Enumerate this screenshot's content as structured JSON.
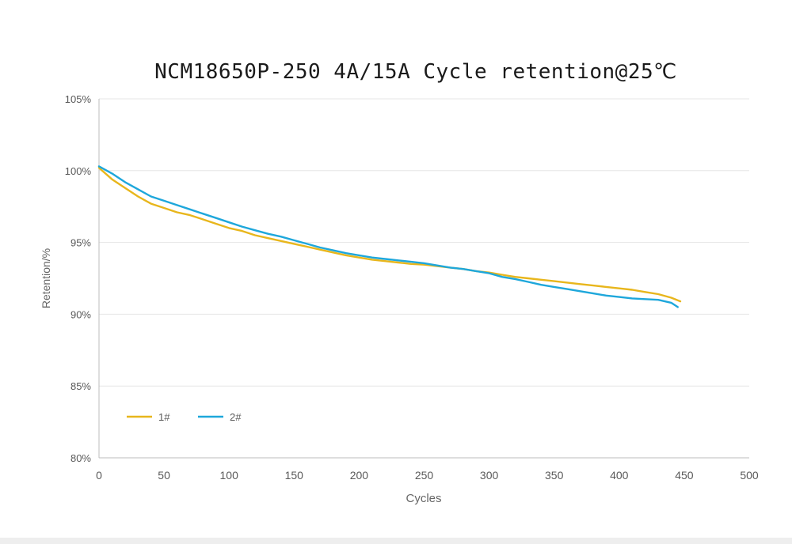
{
  "chart_data": {
    "type": "line",
    "title": "NCM18650P-250  4A/15A Cycle retention@25℃",
    "xlabel": "Cycles",
    "ylabel": "Retention/%",
    "xlim": [
      0,
      500
    ],
    "ylim": [
      80,
      105
    ],
    "x_ticks": [
      "0",
      "50",
      "100",
      "150",
      "200",
      "250",
      "300",
      "350",
      "400",
      "450",
      "500"
    ],
    "y_ticks": [
      "80%",
      "85%",
      "90%",
      "95%",
      "100%",
      "105%"
    ],
    "grid": "horizontal",
    "legend_position": "lower-left",
    "series": [
      {
        "name": "1#",
        "color": "#e8b61c",
        "x": [
          0,
          10,
          20,
          30,
          40,
          50,
          60,
          70,
          80,
          90,
          100,
          110,
          120,
          130,
          140,
          150,
          160,
          170,
          180,
          190,
          200,
          210,
          220,
          230,
          240,
          250,
          260,
          270,
          280,
          290,
          300,
          310,
          320,
          330,
          340,
          350,
          360,
          370,
          380,
          390,
          400,
          410,
          420,
          430,
          440,
          447
        ],
        "values": [
          100.2,
          99.4,
          98.8,
          98.2,
          97.7,
          97.4,
          97.1,
          96.9,
          96.6,
          96.3,
          96.0,
          95.8,
          95.5,
          95.3,
          95.1,
          94.9,
          94.7,
          94.5,
          94.3,
          94.1,
          93.95,
          93.8,
          93.7,
          93.6,
          93.5,
          93.45,
          93.35,
          93.25,
          93.15,
          93.0,
          92.9,
          92.75,
          92.6,
          92.5,
          92.4,
          92.3,
          92.2,
          92.1,
          92.0,
          91.9,
          91.8,
          91.7,
          91.55,
          91.4,
          91.15,
          90.9
        ]
      },
      {
        "name": "2#",
        "color": "#1ea7db",
        "x": [
          0,
          10,
          20,
          30,
          40,
          50,
          60,
          70,
          80,
          90,
          100,
          110,
          120,
          130,
          140,
          150,
          160,
          170,
          180,
          190,
          200,
          210,
          220,
          230,
          240,
          250,
          260,
          270,
          280,
          290,
          300,
          310,
          320,
          330,
          340,
          350,
          360,
          370,
          380,
          390,
          400,
          410,
          420,
          430,
          440,
          445
        ],
        "values": [
          100.3,
          99.8,
          99.2,
          98.7,
          98.2,
          97.9,
          97.6,
          97.3,
          97.0,
          96.7,
          96.4,
          96.1,
          95.85,
          95.6,
          95.4,
          95.15,
          94.9,
          94.65,
          94.45,
          94.25,
          94.1,
          93.95,
          93.85,
          93.75,
          93.65,
          93.55,
          93.4,
          93.25,
          93.15,
          93.0,
          92.85,
          92.6,
          92.45,
          92.25,
          92.05,
          91.9,
          91.75,
          91.6,
          91.45,
          91.3,
          91.2,
          91.1,
          91.05,
          91.0,
          90.8,
          90.5
        ]
      }
    ]
  }
}
